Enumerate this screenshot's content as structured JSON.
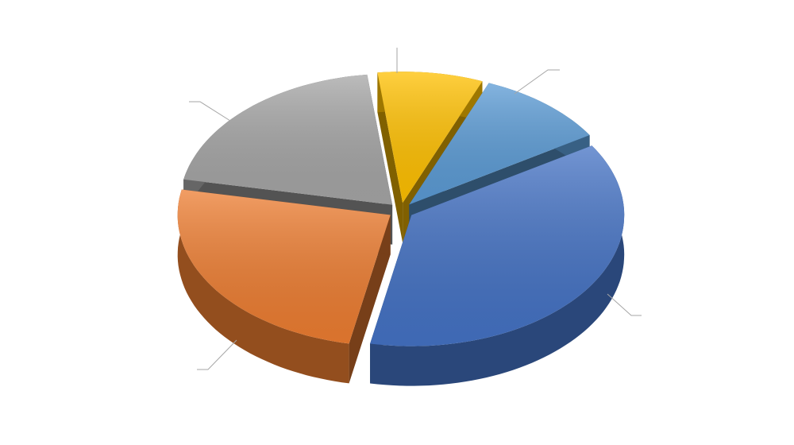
{
  "chart_data": {
    "type": "pie",
    "values": [
      37,
      25,
      20,
      8,
      10
    ],
    "colors": [
      "#4472c4",
      "#ed7d31",
      "#a5a5a5",
      "#ffc000",
      "#5b9bd5"
    ]
  }
}
